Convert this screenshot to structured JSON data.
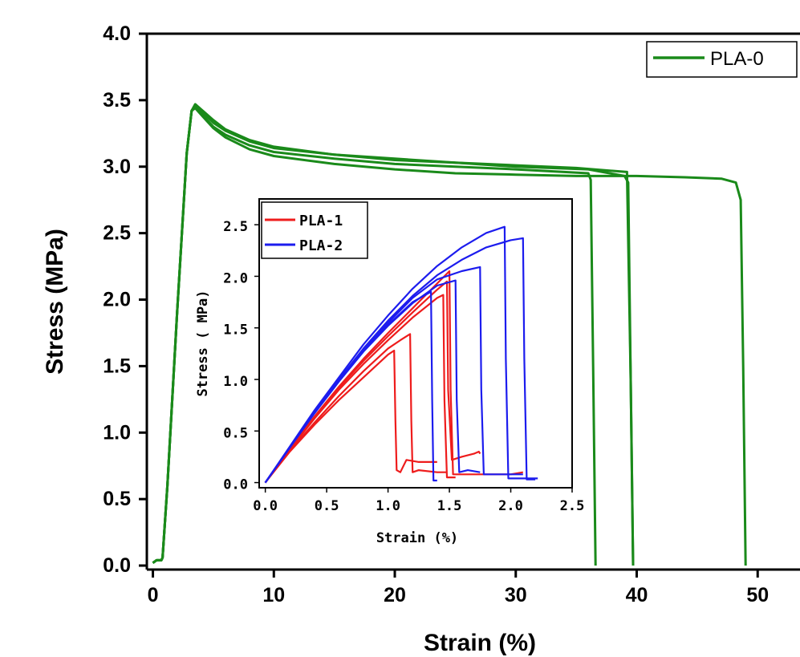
{
  "chart_data": [
    {
      "type": "line",
      "xlabel": "Strain (%)",
      "ylabel": "Stress (MPa)",
      "xlim": [
        -0.5,
        53.5
      ],
      "ylim": [
        -0.03,
        4.0
      ],
      "xticks": [
        "0",
        "10",
        "20",
        "30",
        "40",
        "50"
      ],
      "xtick_values": [
        0,
        10,
        20,
        30,
        40,
        50
      ],
      "yticks": [
        "0.0",
        "0.5",
        "1.0",
        "1.5",
        "2.0",
        "2.5",
        "3.0",
        "3.5",
        "4.0"
      ],
      "ytick_values": [
        0,
        0.5,
        1.0,
        1.5,
        2.0,
        2.5,
        3.0,
        3.5,
        4.0
      ],
      "legend": {
        "position": "top-right",
        "entries": [
          "PLA-0"
        ]
      },
      "series": [
        {
          "name": "PLA-0",
          "color": "#1a8a1a",
          "curves": [
            {
              "x": [
                0,
                0.3,
                0.7,
                0.8,
                1.2,
                2.0,
                2.8,
                3.2,
                3.5,
                4,
                5,
                6,
                8,
                10,
                15,
                20,
                25,
                30,
                34,
                36.0,
                36.2,
                36.4,
                36.6
              ],
              "y": [
                0.02,
                0.04,
                0.04,
                0.06,
                0.6,
                1.9,
                3.1,
                3.42,
                3.45,
                3.4,
                3.3,
                3.24,
                3.16,
                3.11,
                3.06,
                3.02,
                3.0,
                2.98,
                2.96,
                2.95,
                2.9,
                1.5,
                0.0
              ]
            },
            {
              "x": [
                0,
                0.3,
                0.7,
                0.8,
                1.2,
                2.0,
                2.8,
                3.2,
                3.5,
                4,
                5,
                6,
                8,
                10,
                15,
                20,
                25,
                30,
                36,
                39.0,
                39.3,
                39.5,
                39.7
              ],
              "y": [
                0.02,
                0.04,
                0.04,
                0.06,
                0.6,
                1.9,
                3.1,
                3.42,
                3.46,
                3.42,
                3.33,
                3.27,
                3.19,
                3.14,
                3.09,
                3.05,
                3.03,
                3.0,
                2.98,
                2.93,
                2.88,
                1.4,
                0.0
              ]
            },
            {
              "x": [
                0,
                0.3,
                0.7,
                0.8,
                1.2,
                2.0,
                2.8,
                3.2,
                3.5,
                4,
                5,
                6,
                8,
                10,
                15,
                20,
                25,
                30,
                35,
                39.2,
                39.5,
                39.7
              ],
              "y": [
                0.02,
                0.04,
                0.04,
                0.06,
                0.6,
                1.9,
                3.1,
                3.42,
                3.47,
                3.43,
                3.35,
                3.28,
                3.2,
                3.15,
                3.09,
                3.06,
                3.03,
                3.01,
                2.99,
                2.96,
                1.4,
                0.0
              ]
            },
            {
              "x": [
                0,
                0.3,
                0.7,
                0.8,
                1.2,
                2.0,
                2.8,
                3.2,
                3.5,
                4,
                5,
                6,
                8,
                10,
                15,
                20,
                25,
                30,
                35,
                40,
                44,
                47,
                48.2,
                48.6,
                48.8,
                49.0
              ],
              "y": [
                0.02,
                0.04,
                0.04,
                0.06,
                0.6,
                1.9,
                3.1,
                3.42,
                3.44,
                3.39,
                3.29,
                3.22,
                3.13,
                3.08,
                3.02,
                2.98,
                2.95,
                2.94,
                2.93,
                2.93,
                2.92,
                2.91,
                2.88,
                2.75,
                1.5,
                0.0
              ]
            }
          ]
        }
      ]
    },
    {
      "type": "line",
      "xlabel": "Strain (%)",
      "ylabel": "Stress ( MPa)",
      "xlim": [
        -0.05,
        2.5
      ],
      "ylim": [
        -0.05,
        2.75
      ],
      "xticks": [
        "0.0",
        "0.5",
        "1.0",
        "1.5",
        "2.0",
        "2.5"
      ],
      "xtick_values": [
        0,
        0.5,
        1.0,
        1.5,
        2.0,
        2.5
      ],
      "yticks": [
        "0.0",
        "0.5",
        "1.0",
        "1.5",
        "2.0",
        "2.5"
      ],
      "ytick_values": [
        0,
        0.5,
        1.0,
        1.5,
        2.0,
        2.5
      ],
      "legend": {
        "position": "top-left",
        "entries": [
          "PLA-1",
          "PLA-2"
        ]
      },
      "series": [
        {
          "name": "PLA-1",
          "color": "#ee1c1c",
          "curves": [
            {
              "x": [
                0,
                0.2,
                0.4,
                0.6,
                0.8,
                1.0,
                1.05,
                1.06,
                1.07,
                1.1,
                1.15,
                1.25,
                1.4
              ],
              "y": [
                0,
                0.3,
                0.56,
                0.8,
                1.02,
                1.24,
                1.28,
                0.6,
                0.12,
                0.1,
                0.22,
                0.2,
                0.2
              ]
            },
            {
              "x": [
                0,
                0.2,
                0.4,
                0.6,
                0.8,
                1.0,
                1.1,
                1.18,
                1.19,
                1.2,
                1.25,
                1.4,
                1.48
              ],
              "y": [
                0,
                0.31,
                0.58,
                0.84,
                1.08,
                1.3,
                1.38,
                1.44,
                0.6,
                0.1,
                0.12,
                0.1,
                0.1
              ]
            },
            {
              "x": [
                0,
                0.2,
                0.4,
                0.6,
                0.8,
                1.0,
                1.2,
                1.4,
                1.45,
                1.46,
                1.48,
                1.55
              ],
              "y": [
                0,
                0.32,
                0.62,
                0.9,
                1.15,
                1.38,
                1.6,
                1.79,
                1.82,
                0.8,
                0.05,
                0.05
              ]
            },
            {
              "x": [
                0,
                0.2,
                0.4,
                0.6,
                0.8,
                1.0,
                1.2,
                1.4,
                1.48,
                1.49,
                1.52,
                1.6,
                1.7,
                1.74,
                1.75
              ],
              "y": [
                0,
                0.32,
                0.63,
                0.92,
                1.18,
                1.42,
                1.65,
                1.87,
                1.95,
                0.9,
                0.22,
                0.25,
                0.28,
                0.3,
                0.28
              ]
            },
            {
              "x": [
                0,
                0.2,
                0.4,
                0.6,
                0.8,
                1.0,
                1.2,
                1.4,
                1.5,
                1.51,
                1.53,
                1.6,
                1.8,
                2.0,
                2.1
              ],
              "y": [
                0,
                0.33,
                0.64,
                0.93,
                1.2,
                1.45,
                1.69,
                1.93,
                2.05,
                0.9,
                0.08,
                0.08,
                0.08,
                0.08,
                0.1
              ]
            }
          ]
        },
        {
          "name": "PLA-2",
          "color": "#1c1cee",
          "curves": [
            {
              "x": [
                0,
                0.2,
                0.4,
                0.6,
                0.8,
                1.0,
                1.2,
                1.35,
                1.36,
                1.37,
                1.4
              ],
              "y": [
                0,
                0.34,
                0.68,
                0.99,
                1.28,
                1.53,
                1.75,
                1.85,
                0.8,
                0.02,
                0.02
              ]
            },
            {
              "x": [
                0,
                0.2,
                0.4,
                0.6,
                0.8,
                1.0,
                1.2,
                1.4,
                1.55,
                1.56,
                1.58,
                1.65,
                1.75
              ],
              "y": [
                0,
                0.34,
                0.67,
                0.98,
                1.27,
                1.52,
                1.74,
                1.91,
                1.96,
                0.8,
                0.1,
                0.12,
                0.1
              ]
            },
            {
              "x": [
                0,
                0.2,
                0.4,
                0.6,
                0.8,
                1.0,
                1.2,
                1.4,
                1.6,
                1.75,
                1.76,
                1.78,
                1.9,
                2.1
              ],
              "y": [
                0,
                0.34,
                0.68,
                1.0,
                1.29,
                1.55,
                1.79,
                1.97,
                2.05,
                2.09,
                0.9,
                0.08,
                0.08,
                0.08
              ]
            },
            {
              "x": [
                0,
                0.2,
                0.4,
                0.6,
                0.8,
                1.0,
                1.2,
                1.4,
                1.6,
                1.8,
                1.95,
                1.96,
                1.98,
                2.05,
                2.22
              ],
              "y": [
                0,
                0.35,
                0.7,
                1.02,
                1.34,
                1.62,
                1.88,
                2.1,
                2.28,
                2.42,
                2.48,
                1.2,
                0.04,
                0.04,
                0.04
              ]
            },
            {
              "x": [
                0,
                0.2,
                0.4,
                0.6,
                0.8,
                1.0,
                1.2,
                1.4,
                1.6,
                1.8,
                2.0,
                2.1,
                2.11,
                2.13,
                2.2
              ],
              "y": [
                0,
                0.34,
                0.68,
                1.0,
                1.3,
                1.57,
                1.81,
                2.01,
                2.16,
                2.28,
                2.35,
                2.37,
                1.2,
                0.03,
                0.03
              ]
            }
          ]
        }
      ]
    }
  ]
}
